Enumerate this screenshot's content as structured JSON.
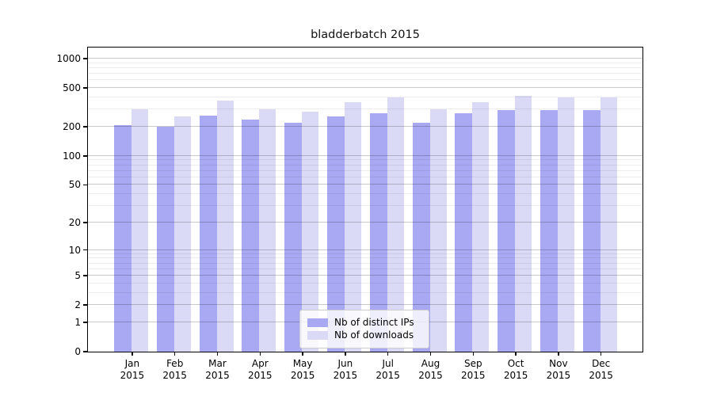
{
  "chart_data": {
    "type": "bar",
    "title": "bladderbatch 2015",
    "categories": [
      "Jan",
      "Feb",
      "Mar",
      "Apr",
      "May",
      "Jun",
      "Jul",
      "Aug",
      "Sep",
      "Oct",
      "Nov",
      "Dec"
    ],
    "x_tick_second_line": "2015",
    "series": [
      {
        "name": "Nb of distinct IPs",
        "color": "#a8a8f3",
        "values": [
          209,
          200,
          261,
          237,
          221,
          257,
          273,
          221,
          274,
          297,
          297,
          296
        ]
      },
      {
        "name": "Nb of downloads",
        "color": "#dadaf6",
        "values": [
          301,
          257,
          372,
          301,
          287,
          358,
          397,
          300,
          361,
          418,
          403,
          403
        ]
      }
    ],
    "y_axis": {
      "scale": "log10(value+1)",
      "ticks": [
        0,
        1,
        2,
        5,
        10,
        20,
        50,
        100,
        200,
        500,
        1000
      ],
      "minor_gridlines": [
        3,
        4,
        6,
        7,
        8,
        9,
        30,
        40,
        60,
        70,
        80,
        90,
        300,
        400,
        600,
        700,
        800,
        900
      ],
      "top_value": 1295
    },
    "legend": {
      "position": "lower center"
    },
    "grid": true
  },
  "style": {
    "background": "#ffffff",
    "axis_color": "#000000",
    "major_grid_color": "rgba(0,0,0,0.21)",
    "minor_grid_color": "rgba(0,0,0,0.07)",
    "text_color": "#000000",
    "legend_border_color": "#cccccc"
  }
}
